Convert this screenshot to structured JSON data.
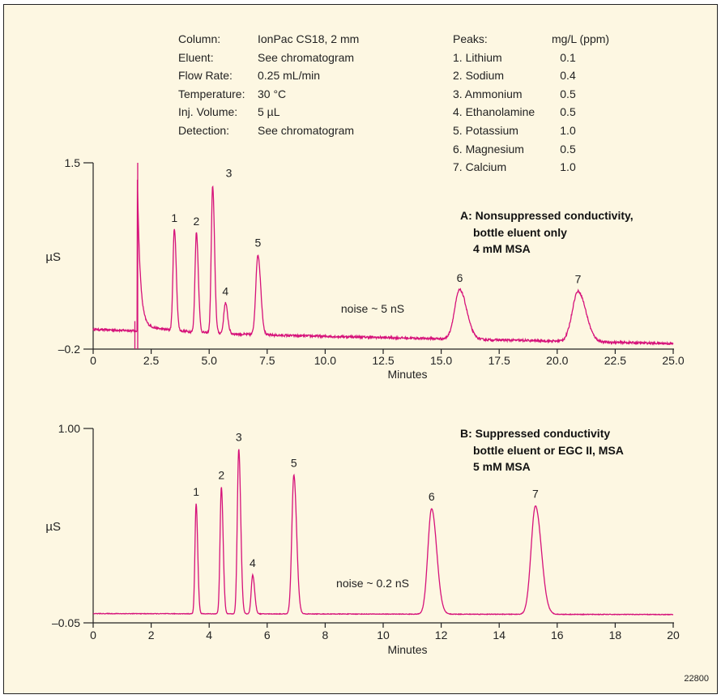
{
  "chart_info": {
    "conditions": [
      {
        "label": "Column:",
        "value": "IonPac CS18, 2 mm"
      },
      {
        "label": "Eluent:",
        "value": "See chromatogram"
      },
      {
        "label": "Flow Rate:",
        "value": "0.25 mL/min"
      },
      {
        "label": "Temperature:",
        "value": "30 °C"
      },
      {
        "label": "Inj. Volume:",
        "value": "5 µL"
      },
      {
        "label": "Detection:",
        "value": "See chromatogram"
      }
    ],
    "peaks_header": {
      "label": "Peaks:",
      "unit": "mg/L (ppm)"
    },
    "peaks": [
      {
        "label": "1. Lithium",
        "value": "0.1"
      },
      {
        "label": "2. Sodium",
        "value": "0.4"
      },
      {
        "label": "3. Ammonium",
        "value": "0.5"
      },
      {
        "label": "4. Ethanolamine",
        "value": "0.5"
      },
      {
        "label": "5. Potassium",
        "value": "1.0"
      },
      {
        "label": "6. Magnesium",
        "value": "0.5"
      },
      {
        "label": "7. Calcium",
        "value": "1.0"
      }
    ],
    "figure_id": "22800"
  },
  "colors": {
    "trace": "#d6127a",
    "axis": "#222222",
    "background": "#fdf7e2"
  },
  "chart_data": [
    {
      "type": "line",
      "xlabel": "Minutes",
      "ylabel": "µS",
      "xlim": [
        0,
        25
      ],
      "ylim": [
        -0.2,
        1.5
      ],
      "x_ticks": [
        0,
        2.5,
        5.0,
        7.5,
        10.0,
        12.5,
        15.0,
        17.5,
        20.0,
        22.5,
        25.0
      ],
      "x_tick_labels": [
        "0",
        "2.5",
        "5.0",
        "7.5",
        "10.0",
        "12.5",
        "15.0",
        "17.5",
        "20.0",
        "22.5",
        "25.0"
      ],
      "y_tick_labels": [
        "1.5",
        "–0.2"
      ],
      "annotation": {
        "line1": "A: Nonsuppressed conductivity,",
        "line2": "bottle eluent only",
        "line3": "4 mM MSA"
      },
      "noise_label": "noise ~ 5 nS",
      "baseline": {
        "start": -0.02,
        "end": -0.15,
        "drift_until": 7.0,
        "drift_level": -0.07
      },
      "peaks": [
        {
          "label": "1",
          "t": 3.5,
          "height": 0.93,
          "width": 0.06
        },
        {
          "label": "2",
          "t": 4.45,
          "height": 0.91,
          "width": 0.06
        },
        {
          "label": "3",
          "t": 5.15,
          "height": 1.34,
          "width": 0.06
        },
        {
          "label": "4",
          "t": 5.7,
          "height": 0.28,
          "width": 0.07
        },
        {
          "label": "5",
          "t": 7.1,
          "height": 0.73,
          "width": 0.09
        },
        {
          "label": "6",
          "t": 15.8,
          "height": 0.45,
          "width": 0.22
        },
        {
          "label": "7",
          "t": 20.9,
          "height": 0.46,
          "width": 0.25
        }
      ],
      "void_disturbance": {
        "t": 1.85,
        "top": 1.5,
        "bottom": -0.2
      }
    },
    {
      "type": "line",
      "xlabel": "Minutes",
      "ylabel": "µS",
      "xlim": [
        0,
        20
      ],
      "ylim": [
        -0.05,
        1.0
      ],
      "x_ticks": [
        0,
        2,
        4,
        6,
        8,
        10,
        12,
        14,
        16,
        18,
        20
      ],
      "x_tick_labels": [
        "0",
        "2",
        "4",
        "6",
        "8",
        "10",
        "12",
        "14",
        "16",
        "18",
        "20"
      ],
      "y_tick_labels": [
        "1.00",
        "–0.05"
      ],
      "annotation": {
        "line1": "B: Suppressed conductivity",
        "line2": "bottle eluent or  EGC II, MSA",
        "line3": "5 mM MSA"
      },
      "noise_label": "noise ~ 0.2 nS",
      "baseline": {
        "start": 0.0,
        "end": -0.005
      },
      "peaks": [
        {
          "label": "1",
          "t": 3.55,
          "height": 0.595,
          "width": 0.04
        },
        {
          "label": "2",
          "t": 4.42,
          "height": 0.685,
          "width": 0.045
        },
        {
          "label": "3",
          "t": 5.02,
          "height": 0.89,
          "width": 0.05
        },
        {
          "label": "4",
          "t": 5.5,
          "height": 0.21,
          "width": 0.05
        },
        {
          "label": "5",
          "t": 6.92,
          "height": 0.75,
          "width": 0.07
        },
        {
          "label": "6",
          "t": 11.67,
          "height": 0.57,
          "width": 0.13
        },
        {
          "label": "7",
          "t": 15.25,
          "height": 0.585,
          "width": 0.15
        }
      ]
    }
  ]
}
